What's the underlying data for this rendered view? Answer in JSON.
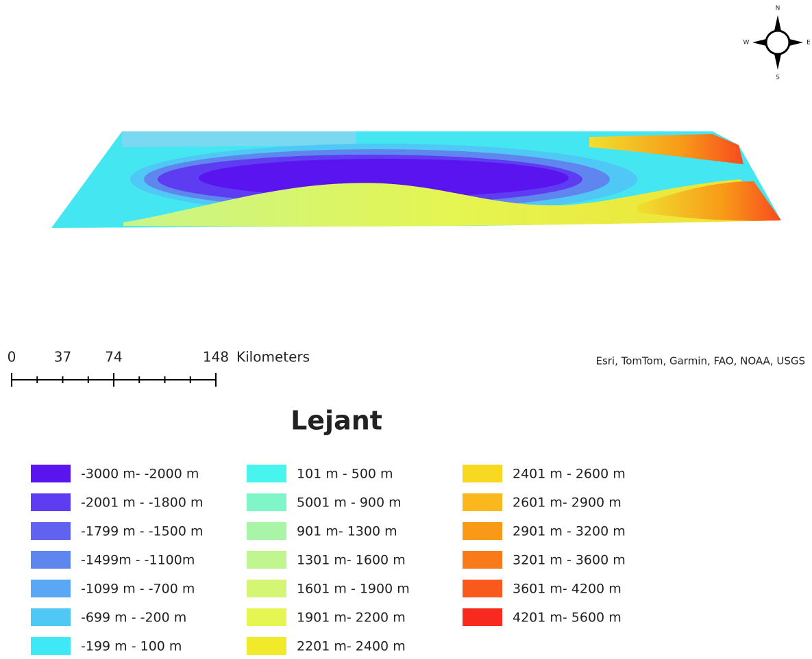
{
  "compass": {
    "n": "N",
    "s": "S",
    "e": "E",
    "w": "W"
  },
  "scale_bar": {
    "ticks": [
      0,
      37,
      74,
      148
    ],
    "unit": "Kilometers"
  },
  "attribution": "Esri, TomTom, Garmin, FAO, NOAA, USGS",
  "legend": {
    "title": "Lejant",
    "items": [
      {
        "label": "-3000 m- -2000 m",
        "color": "#5a14f0"
      },
      {
        "label": "-2001 m - -1800 m",
        "color": "#5e3cf2"
      },
      {
        "label": "-1799 m - -1500 m",
        "color": "#6262f0"
      },
      {
        "label": "-1499m - -1100m",
        "color": "#5f86ee"
      },
      {
        "label": "-1099 m - -700 m",
        "color": "#5aa8f5"
      },
      {
        "label": "-699 m - -200 m",
        "color": "#4fc8f5"
      },
      {
        "label": "-199 m - 100 m",
        "color": "#3ee8f5"
      },
      {
        "label": "101 m - 500 m",
        "color": "#48f5ee"
      },
      {
        "label": "5001 m - 900 m",
        "color": "#80f5c8"
      },
      {
        "label": "901 m- 1300 m",
        "color": "#a8f5a8"
      },
      {
        "label": "1301 m- 1600 m",
        "color": "#c0f590"
      },
      {
        "label": "1601 m - 1900 m",
        "color": "#d5f575"
      },
      {
        "label": "1901 m- 2200 m",
        "color": "#e5f552"
      },
      {
        "label": "2201 m- 2400 m",
        "color": "#f0ea2a"
      },
      {
        "label": "2401 m - 2600 m",
        "color": "#f8d820"
      },
      {
        "label": "2601 m- 2900 m",
        "color": "#fbb81e"
      },
      {
        "label": "2901 m - 3200 m",
        "color": "#f89a18"
      },
      {
        "label": "3201 m - 3600 m",
        "color": "#f87a18"
      },
      {
        "label": "3601 m- 4200 m",
        "color": "#f85a1e"
      },
      {
        "label": "4201 m- 5600 m",
        "color": "#f82a20"
      }
    ]
  }
}
